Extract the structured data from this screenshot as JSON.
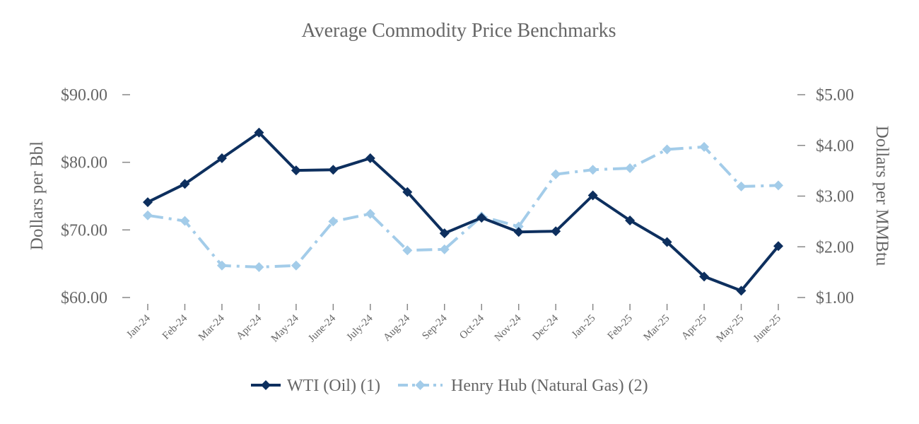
{
  "chart_data": {
    "type": "line",
    "title": "Average Commodity Price Benchmarks",
    "categories": [
      "Jan-24",
      "Feb-24",
      "Mar-24",
      "Apr-24",
      "May-24",
      "June-24",
      "July-24",
      "Aug-24",
      "Sep-24",
      "Oct-24",
      "Nov-24",
      "Dec-24",
      "Jan-25",
      "Feb-25",
      "Mar-25",
      "Apr-25",
      "May-25",
      "June-25"
    ],
    "y_left": {
      "label": "Dollars per Bbl",
      "range": [
        60,
        90
      ],
      "ticks": [
        60,
        70,
        80,
        90
      ],
      "tick_labels": [
        "$60.00",
        "$70.00",
        "$80.00",
        "$90.00"
      ]
    },
    "y_right": {
      "label": "Dollars per MMBtu",
      "range": [
        1,
        5
      ],
      "ticks": [
        1,
        2,
        3,
        4,
        5
      ],
      "tick_labels": [
        "$1.00",
        "$2.00",
        "$3.00",
        "$4.00",
        "$5.00"
      ]
    },
    "series": [
      {
        "name": "WTI (Oil) (1)",
        "axis": "left",
        "color": "#0d2f5e",
        "dash": "solid",
        "values": [
          74.1,
          76.8,
          80.6,
          84.4,
          78.8,
          78.9,
          80.6,
          75.6,
          69.5,
          71.8,
          69.7,
          69.8,
          75.1,
          71.4,
          68.2,
          63.1,
          61.0,
          67.6
        ]
      },
      {
        "name": "Henry Hub (Natural Gas) (2)",
        "axis": "right",
        "color": "#a3cce9",
        "dash": "dashdot",
        "values": [
          2.62,
          2.51,
          1.63,
          1.6,
          1.63,
          2.5,
          2.65,
          1.93,
          1.95,
          2.6,
          2.4,
          3.43,
          3.52,
          3.55,
          3.92,
          3.97,
          3.19,
          3.21
        ]
      }
    ],
    "legend_position": "bottom-center"
  }
}
